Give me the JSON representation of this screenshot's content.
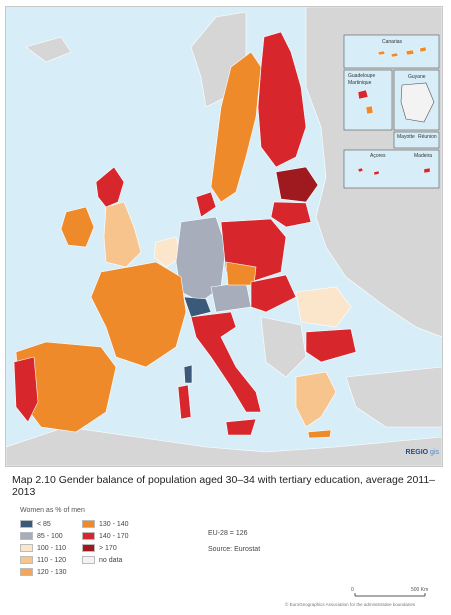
{
  "title": "Map 2.10 Gender balance of population aged 30–34 with tertiary education, average 2011–2013",
  "brand": {
    "main": "REGIO",
    "sub": "gis"
  },
  "insets": {
    "canarias": "Canarias",
    "guadeloupe": "Guadeloupe",
    "martinique": "Martinique",
    "guyane": "Guyane",
    "mayotte": "Mayotte",
    "reunion": "Réunion",
    "acores": "Açores",
    "madeira": "Madeira"
  },
  "legend": {
    "title": "Women as % of men",
    "items": [
      {
        "label": "< 85",
        "color": "#3b5a7a"
      },
      {
        "label": "85 - 100",
        "color": "#a7adbb"
      },
      {
        "label": "100 - 110",
        "color": "#fbe6cb"
      },
      {
        "label": "110 - 120",
        "color": "#f7c48d"
      },
      {
        "label": "120 - 130",
        "color": "#f3a75e"
      },
      {
        "label": "130 - 140",
        "color": "#ef8a2b"
      },
      {
        "label": "140 - 170",
        "color": "#d7262c"
      },
      {
        "label": "> 170",
        "color": "#9e1a1f"
      },
      {
        "label": "no data",
        "color": "#f3f3f3"
      }
    ]
  },
  "eu_value": "EU-28 = 126",
  "source": "Source: Eurostat",
  "scale": {
    "zero": "0",
    "max": "500 Km"
  },
  "copyright": "© EuroGeographics Association for the administrative boundaries",
  "colors": {
    "sea": "#d7eef8",
    "nonEU": "#d6d6d6",
    "border": "#ffffff"
  }
}
